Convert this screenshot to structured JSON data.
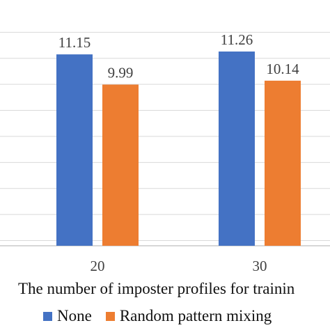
{
  "chart_data": {
    "type": "bar",
    "title": "",
    "xlabel": "The number of imposter profiles for trainin",
    "ylabel": "",
    "categories": [
      "20",
      "30"
    ],
    "series": [
      {
        "name": "None",
        "values": [
          11.15,
          11.26
        ],
        "color": "#4472C4"
      },
      {
        "name": "Random pattern mixing",
        "values": [
          9.99,
          10.14
        ],
        "color": "#ED7D31"
      }
    ],
    "data_labels": [
      [
        "11.15",
        "11.26"
      ],
      [
        "9.99",
        "10.14"
      ]
    ],
    "ylim": [
      3.8,
      12.7
    ],
    "grid": true,
    "legend_position": "bottom"
  }
}
